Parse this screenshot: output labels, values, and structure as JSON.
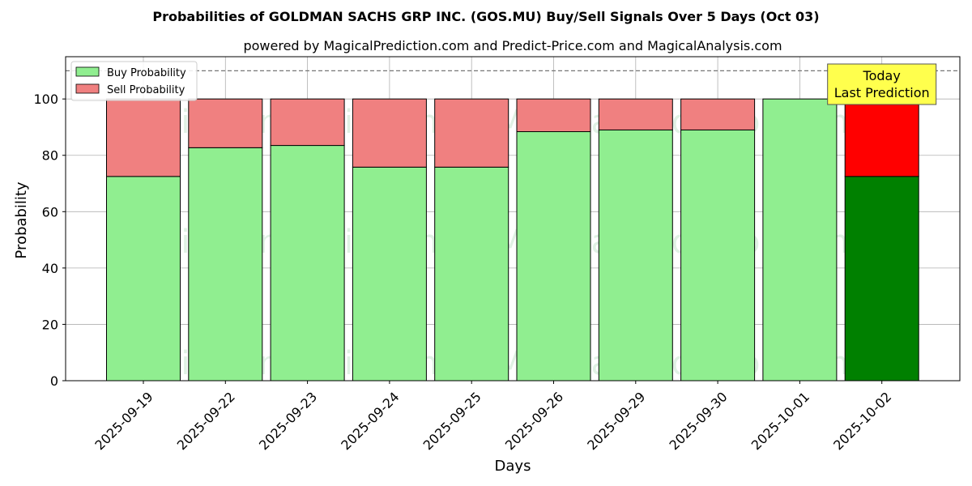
{
  "chart_data": {
    "type": "bar",
    "stacked": true,
    "title": "Probabilities of GOLDMAN SACHS GRP INC. (GOS.MU) Buy/Sell Signals Over 5 Days (Oct 03)",
    "subtitle": "powered by MagicalPrediction.com and Predict-Price.com and MagicalAnalysis.com",
    "xlabel": "Days",
    "ylabel": "Probability",
    "ylim": [
      0,
      115
    ],
    "yticks": [
      0,
      20,
      40,
      60,
      80,
      100
    ],
    "grid": true,
    "legend_position": "top-left",
    "reference_line": 110,
    "categories": [
      "2025-09-19",
      "2025-09-22",
      "2025-09-23",
      "2025-09-24",
      "2025-09-25",
      "2025-09-26",
      "2025-09-29",
      "2025-09-30",
      "2025-10-01",
      "2025-10-02"
    ],
    "series": [
      {
        "name": "Buy Probability",
        "color": "#90ee90",
        "highlight_color": "#008000",
        "values": [
          72.5,
          82.7,
          83.5,
          75.8,
          75.8,
          88.4,
          89.0,
          89.0,
          100.0,
          72.5
        ]
      },
      {
        "name": "Sell Probability",
        "color": "#f08080",
        "highlight_color": "#ff0000",
        "values": [
          27.5,
          17.3,
          16.5,
          24.2,
          24.2,
          11.6,
          11.0,
          11.0,
          0.0,
          27.5
        ]
      }
    ],
    "highlight_index": 9,
    "annotation": {
      "line1": "Today",
      "line2": "Last Prediction",
      "background": "#ffff4d"
    },
    "watermarks": [
      "MagicalAnalysis.com",
      "MagicalPrediction.com"
    ]
  }
}
